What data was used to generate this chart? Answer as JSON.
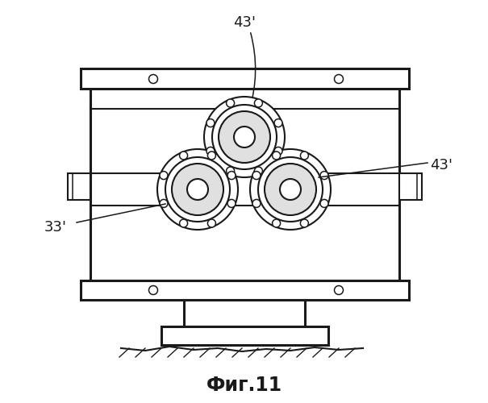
{
  "bg_color": "#ffffff",
  "line_color": "#1a1a1a",
  "title": "Фиг.11",
  "title_fontsize": 17,
  "label_43_top": "43'",
  "label_43_right": "43'",
  "label_33": "33'",
  "label_fontsize": 12
}
